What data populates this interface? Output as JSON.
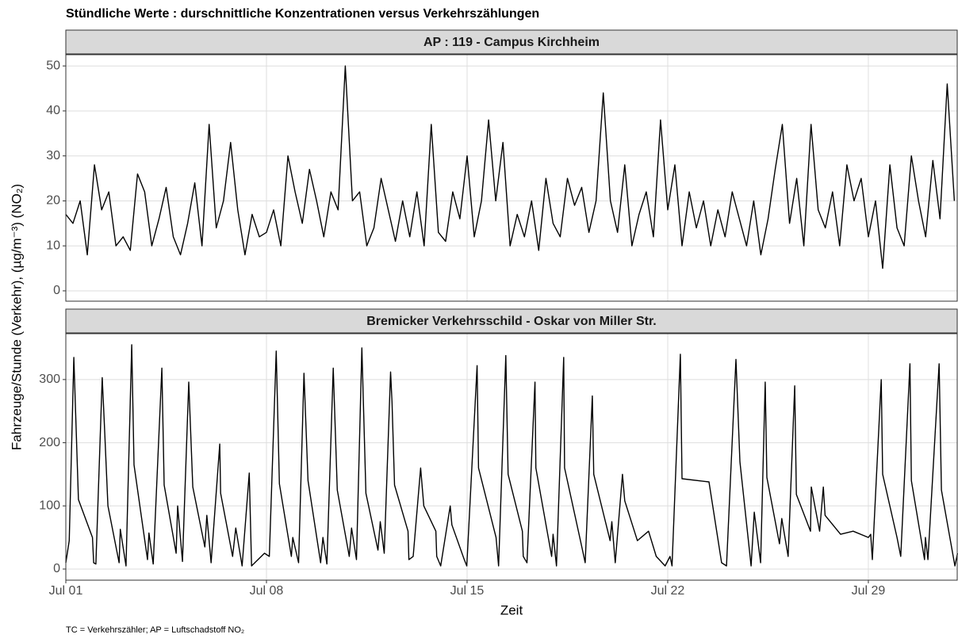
{
  "title": "Stündliche Werte : durschnittliche Konzentrationen versus Verkehrszählungen",
  "ylabel": "Fahrzeuge/Stunde (Verkehr), (µg/m⁻³) (NO₂)",
  "xlabel": "Zeit",
  "caption": "TC = Verkehrszähler; AP = Luftschadstoff NO₂",
  "chart_data": [
    {
      "type": "line",
      "title": "AP : 119 - Campus Kirchheim",
      "x": [
        1,
        1.25,
        1.5,
        1.75,
        2,
        2.25,
        2.5,
        2.75,
        3,
        3.25,
        3.5,
        3.75,
        4,
        4.25,
        4.5,
        4.75,
        5,
        5.25,
        5.5,
        5.75,
        6,
        6.25,
        6.5,
        6.75,
        7,
        7.25,
        7.5,
        7.75,
        8,
        8.25,
        8.5,
        8.75,
        9,
        9.25,
        9.5,
        9.75,
        10,
        10.25,
        10.5,
        10.75,
        11,
        11.25,
        11.5,
        11.75,
        12,
        12.25,
        12.5,
        12.75,
        13,
        13.25,
        13.5,
        13.75,
        14,
        14.25,
        14.5,
        14.75,
        15,
        15.25,
        15.5,
        15.75,
        16,
        16.25,
        16.5,
        16.75,
        17,
        17.25,
        17.5,
        17.75,
        18,
        18.25,
        18.5,
        18.75,
        19,
        19.25,
        19.5,
        19.75,
        20,
        20.25,
        20.5,
        20.75,
        21,
        21.25,
        21.5,
        21.75,
        22,
        22.25,
        22.5,
        22.75,
        23,
        23.25,
        23.5,
        23.75,
        24,
        24.25,
        24.5,
        24.75,
        25,
        25.25,
        25.5,
        25.75,
        26,
        26.25,
        26.5,
        26.75,
        27,
        27.25,
        27.5,
        27.75,
        28,
        28.25,
        28.5,
        28.75,
        29,
        29.25,
        29.5,
        29.75,
        30,
        30.25,
        30.5,
        30.75,
        31,
        31.25,
        31.5,
        31.75,
        32
      ],
      "series": [
        {
          "name": "NO2",
          "color": "#000000",
          "values": [
            17,
            15,
            20,
            8,
            28,
            18,
            22,
            10,
            12,
            9,
            26,
            22,
            10,
            16,
            23,
            12,
            8,
            15,
            24,
            10,
            37,
            14,
            20,
            33,
            18,
            8,
            17,
            12,
            13,
            18,
            10,
            30,
            22,
            15,
            27,
            20,
            12,
            22,
            18,
            50,
            20,
            22,
            10,
            14,
            25,
            18,
            11,
            20,
            12,
            22,
            10,
            37,
            13,
            11,
            22,
            16,
            30,
            12,
            20,
            38,
            20,
            33,
            10,
            17,
            12,
            20,
            9,
            25,
            15,
            12,
            25,
            19,
            23,
            13,
            20,
            44,
            20,
            13,
            28,
            10,
            17,
            22,
            12,
            38,
            18,
            28,
            10,
            22,
            14,
            20,
            10,
            18,
            12,
            22,
            16,
            10,
            20,
            8,
            16,
            27,
            37,
            15,
            25,
            10,
            37,
            18,
            14,
            22,
            10,
            28,
            20,
            25,
            12,
            20,
            5,
            28,
            14,
            10,
            30,
            20,
            12,
            29,
            16,
            46,
            20
          ]
        }
      ],
      "xlim": [
        1,
        32.1
      ],
      "ylim": [
        -2.3,
        52.5
      ],
      "yticks": [
        0,
        10,
        20,
        30,
        40,
        50
      ]
    },
    {
      "type": "line",
      "title": "Bremicker Verkehrsschild - Oskar von Miller Str.",
      "x": [
        1,
        1.12,
        1.28,
        1.44,
        1.93,
        1.97,
        2.05,
        2.27,
        2.34,
        2.47,
        2.86,
        2.9,
        3.1,
        3.3,
        3.38,
        3.85,
        3.9,
        4.05,
        4.35,
        4.43,
        4.85,
        4.9,
        5.07,
        5.29,
        5.43,
        5.85,
        5.92,
        6.07,
        6.37,
        6.4,
        6.82,
        6.93,
        7.15,
        7.4,
        7.48,
        7.93,
        8.1,
        8.34,
        8.45,
        8.87,
        8.92,
        9.12,
        9.31,
        9.45,
        9.89,
        9.97,
        10.11,
        10.33,
        10.47,
        10.89,
        10.97,
        11.14,
        11.33,
        11.47,
        11.89,
        11.97,
        12.11,
        12.33,
        12.38,
        12.47,
        12.94,
        12.97,
        13.12,
        13.38,
        13.49,
        13.91,
        13.94,
        14.08,
        14.41,
        14.47,
        14.9,
        14.99,
        15.35,
        15.4,
        16.01,
        16.1,
        16.35,
        16.43,
        16.93,
        16.96,
        17.09,
        17.37,
        17.4,
        17.95,
        18.0,
        18.12,
        18.37,
        18.4,
        18.98,
        19.12,
        19.37,
        19.42,
        19.99,
        20.05,
        20.17,
        20.42,
        20.5,
        20.94,
        21.33,
        21.6,
        21.91,
        22.08,
        22.15,
        22.44,
        22.5,
        23.44,
        23.88,
        24.05,
        24.38,
        24.52,
        24.91,
        25.02,
        25.24,
        25.4,
        25.46,
        25.9,
        25.98,
        26.2,
        26.43,
        26.49,
        26.98,
        27.01,
        27.3,
        27.43,
        27.49,
        28.03,
        28.47,
        29.0,
        29.08,
        29.14,
        29.45,
        29.5,
        30.0,
        30.13,
        30.45,
        30.5,
        30.96,
        30.99,
        31.08,
        31.47,
        31.55,
        32.02,
        32.11
      ],
      "series": [
        {
          "name": "Verkehr",
          "color": "#000000",
          "values": [
            10,
            45,
            335,
            110,
            50,
            10,
            8,
            303,
            235,
            100,
            10,
            63,
            5,
            355,
            165,
            15,
            57,
            8,
            318,
            133,
            25,
            100,
            12,
            296,
            130,
            35,
            85,
            10,
            198,
            120,
            20,
            65,
            5,
            152,
            5,
            25,
            20,
            345,
            135,
            20,
            50,
            10,
            310,
            140,
            10,
            50,
            8,
            318,
            125,
            20,
            65,
            15,
            350,
            120,
            30,
            75,
            25,
            312,
            265,
            133,
            60,
            15,
            20,
            160,
            100,
            60,
            20,
            5,
            100,
            70,
            15,
            5,
            322,
            160,
            50,
            5,
            338,
            150,
            60,
            20,
            10,
            296,
            160,
            20,
            55,
            5,
            335,
            160,
            40,
            10,
            274,
            150,
            45,
            75,
            10,
            150,
            108,
            45,
            60,
            20,
            5,
            20,
            5,
            340,
            143,
            138,
            10,
            5,
            332,
            170,
            5,
            90,
            10,
            296,
            145,
            40,
            80,
            20,
            290,
            118,
            60,
            130,
            60,
            130,
            85,
            55,
            60,
            50,
            55,
            15,
            300,
            150,
            50,
            20,
            325,
            140,
            15,
            50,
            15,
            325,
            125,
            5,
            25
          ]
        }
      ],
      "xlim": [
        1,
        32.1
      ],
      "ylim": [
        -17.6,
        372.6
      ],
      "yticks": [
        0,
        100,
        200,
        300
      ],
      "xticks": [
        {
          "value": 1,
          "label": "Jul 01"
        },
        {
          "value": 8,
          "label": "Jul 08"
        },
        {
          "value": 15,
          "label": "Jul 15"
        },
        {
          "value": 22,
          "label": "Jul 22"
        },
        {
          "value": 29,
          "label": "Jul 29"
        }
      ]
    }
  ]
}
